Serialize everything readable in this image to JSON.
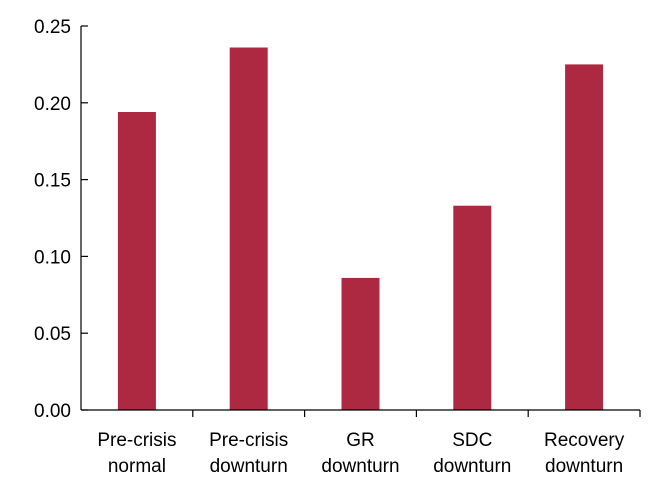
{
  "chart_data": {
    "type": "bar",
    "categories": [
      [
        "Pre-crisis",
        "normal"
      ],
      [
        "Pre-crisis",
        "downturn"
      ],
      [
        "GR",
        "downturn"
      ],
      [
        "SDC",
        "downturn"
      ],
      [
        "Recovery",
        "downturn"
      ]
    ],
    "values": [
      0.194,
      0.236,
      0.086,
      0.133,
      0.225
    ],
    "title": "",
    "xlabel": "",
    "ylabel": "",
    "ylim": [
      0,
      0.25
    ],
    "yticks": [
      "0.00",
      "0.05",
      "0.10",
      "0.15",
      "0.20",
      "0.25"
    ],
    "grid": false,
    "legend": "none",
    "bar_color": "#AD2841"
  }
}
